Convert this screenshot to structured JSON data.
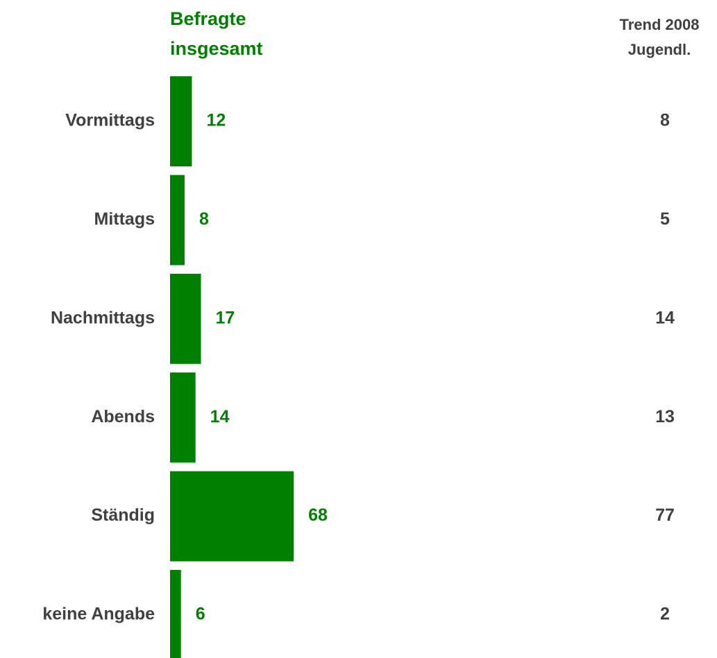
{
  "chart_data": {
    "type": "bar",
    "orientation": "horizontal",
    "categories": [
      "Vormittags",
      "Mittags",
      "Nachmittags",
      "Abends",
      "Ständig",
      "keine Angabe"
    ],
    "series": [
      {
        "name": "Befragte insgesamt",
        "color": "#008000",
        "values": [
          12,
          8,
          17,
          14,
          68,
          6
        ]
      }
    ],
    "trend": {
      "name": "Trend 2008 Jugendl.",
      "color": "#404040",
      "values": [
        8,
        5,
        14,
        13,
        77,
        2
      ]
    }
  }
}
